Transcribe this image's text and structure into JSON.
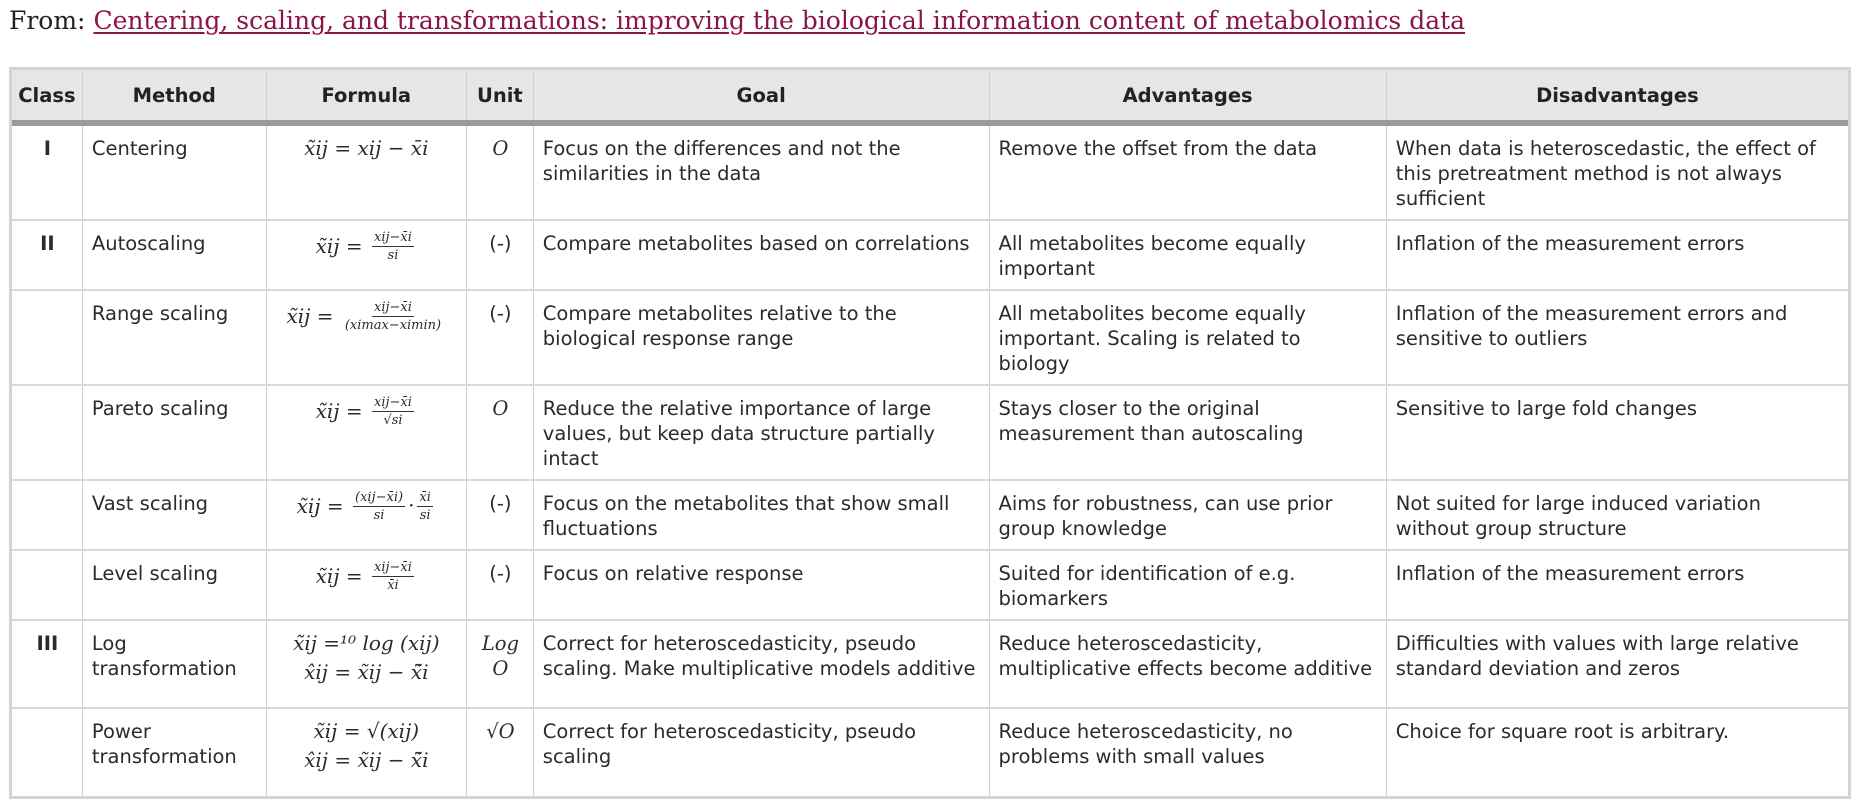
{
  "header": {
    "from_label": "From:",
    "article_title": "Centering, scaling, and transformations: improving the biological information content of metabolomics data"
  },
  "table": {
    "columns": [
      "Class",
      "Method",
      "Formula",
      "Unit",
      "Goal",
      "Advantages",
      "Disadvantages"
    ],
    "rows": [
      {
        "class": "I",
        "method": "Centering",
        "formula": {
          "lhs": "x̃ij =",
          "rhs": "xij − x̄i"
        },
        "unit": "O",
        "goal": "Focus on the differences and not the similarities in the data",
        "advantages": "Remove the offset from the data",
        "disadvantages": "When data is heteroscedastic, the effect of this pretreatment method is not always sufficient"
      },
      {
        "class": "II",
        "method": "Autoscaling",
        "formula": {
          "lhs": "x̃ij =",
          "num": "xij−x̄i",
          "den": "si"
        },
        "unit": "(-)",
        "goal": "Compare metabolites based on correlations",
        "advantages": "All metabolites become equally important",
        "disadvantages": "Inflation of the measurement errors"
      },
      {
        "class": "",
        "method": "Range scaling",
        "formula": {
          "lhs": "x̃ij =",
          "num": "xij−x̄i",
          "den": "(ximax−ximin)"
        },
        "unit": "(-)",
        "goal": "Compare metabolites relative to the biological response range",
        "advantages": "All metabolites become equally important. Scaling is related to biology",
        "disadvantages": "Inflation of the measurement errors and sensitive to outliers"
      },
      {
        "class": "",
        "method": "Pareto scaling",
        "formula": {
          "lhs": "x̃ij =",
          "num": "xij−x̄i",
          "den": "√si"
        },
        "unit": "O",
        "goal": "Reduce the relative importance of large values, but keep data structure partially intact",
        "advantages": "Stays closer to the original measurement than autoscaling",
        "disadvantages": "Sensitive to large fold changes"
      },
      {
        "class": "",
        "method": "Vast scaling",
        "formula": {
          "lhs": "x̃ij =",
          "num": "(xij−x̄i)",
          "den": "si",
          "num2": "x̄i",
          "den2": "si"
        },
        "unit": "(-)",
        "goal": "Focus on the metabolites that show small fluctuations",
        "advantages": "Aims for robustness, can use prior group knowledge",
        "disadvantages": "Not suited for large induced variation without group structure"
      },
      {
        "class": "",
        "method": "Level scaling",
        "formula": {
          "lhs": "x̃ij =",
          "num": "xij−x̄i",
          "den": "x̄i"
        },
        "unit": "(-)",
        "goal": "Focus on relative response",
        "advantages": "Suited for identification of e.g. biomarkers",
        "disadvantages": "Inflation of the measurement errors"
      },
      {
        "class": "III",
        "method": "Log transformation",
        "formula": {
          "line1": "x̃ij =¹⁰ log (xij)",
          "line2": "x̂ij = x̃ij − x̃̄i"
        },
        "unit": "Log O",
        "goal": "Correct for heteroscedasticity, pseudo scaling. Make multiplicative models additive",
        "advantages": "Reduce heteroscedasticity, multiplicative effects become additive",
        "disadvantages": "Difficulties with values with large relative standard deviation and zeros"
      },
      {
        "class": "",
        "method": "Power transformation",
        "formula": {
          "line1": "x̃ij = √(xij)",
          "line2": "x̂ij = x̃ij − x̃̄i"
        },
        "unit": "√O",
        "goal": "Correct for heteroscedasticity, pseudo scaling",
        "advantages": "Reduce heteroscedasticity, no problems with small values",
        "disadvantages": "Choice for square root is arbitrary."
      }
    ]
  }
}
